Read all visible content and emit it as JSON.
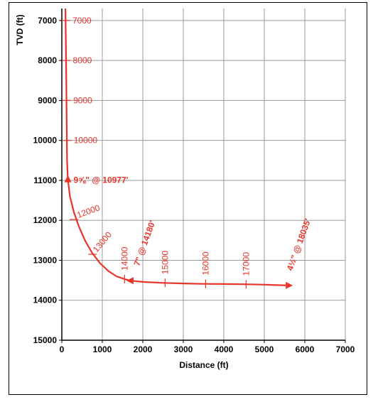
{
  "chart_data": {
    "type": "line",
    "xlabel": "Distance (ft)",
    "ylabel": "TVD (ft)",
    "xlim": [
      0,
      7000
    ],
    "ylim": [
      6700,
      15000
    ],
    "y_inverted": true,
    "grid": true,
    "x_ticks": [
      0,
      1000,
      2000,
      3000,
      4000,
      5000,
      6000,
      7000
    ],
    "y_ticks": [
      7000,
      8000,
      9000,
      10000,
      11000,
      12000,
      13000,
      14000,
      15000
    ],
    "series": [
      {
        "color": "#e8342a",
        "points": [
          {
            "x": 90,
            "y": 6700
          },
          {
            "x": 100,
            "y": 7500
          },
          {
            "x": 110,
            "y": 8500
          },
          {
            "x": 120,
            "y": 9500
          },
          {
            "x": 130,
            "y": 10500
          },
          {
            "x": 150,
            "y": 10977
          },
          {
            "x": 200,
            "y": 11400
          },
          {
            "x": 300,
            "y": 11800
          },
          {
            "x": 420,
            "y": 12150
          },
          {
            "x": 570,
            "y": 12500
          },
          {
            "x": 750,
            "y": 12820
          },
          {
            "x": 950,
            "y": 13080
          },
          {
            "x": 1150,
            "y": 13270
          },
          {
            "x": 1350,
            "y": 13400
          },
          {
            "x": 1550,
            "y": 13470
          },
          {
            "x": 1700,
            "y": 13510
          },
          {
            "x": 2000,
            "y": 13540
          },
          {
            "x": 2500,
            "y": 13565
          },
          {
            "x": 3000,
            "y": 13580
          },
          {
            "x": 3500,
            "y": 13590
          },
          {
            "x": 4000,
            "y": 13595
          },
          {
            "x": 4500,
            "y": 13600
          },
          {
            "x": 5000,
            "y": 13610
          },
          {
            "x": 5600,
            "y": 13630
          }
        ]
      }
    ],
    "md_marks": [
      {
        "label": "7000",
        "x": 105,
        "y": 7000,
        "rotated": false
      },
      {
        "label": "8000",
        "x": 115,
        "y": 8000,
        "rotated": false
      },
      {
        "label": "9000",
        "x": 125,
        "y": 9000,
        "rotated": false
      },
      {
        "label": "10000",
        "x": 135,
        "y": 10000,
        "rotated": false
      },
      {
        "label": "12000",
        "x": 300,
        "y": 11980,
        "rotated": false
      },
      {
        "label": "13000",
        "x": 760,
        "y": 12850,
        "rotated": false
      },
      {
        "label": "14000",
        "x": 1550,
        "y": 13470,
        "rotated": true
      },
      {
        "label": "15000",
        "x": 2550,
        "y": 13565,
        "rotated": true
      },
      {
        "label": "16000",
        "x": 3550,
        "y": 13590,
        "rotated": true
      },
      {
        "label": "17000",
        "x": 4550,
        "y": 13602,
        "rotated": true
      }
    ],
    "casing_points": [
      {
        "label": "9⅝\" @ 10977'",
        "x": 150,
        "y": 10977,
        "arrow": "up",
        "rotated": false
      },
      {
        "label": "7\" @ 14180'",
        "x": 1700,
        "y": 13510,
        "arrow": "left",
        "rotated": true
      },
      {
        "label": "4½\" @ 18035'",
        "x": 5600,
        "y": 13630,
        "arrow": "right",
        "rotated": true
      }
    ]
  }
}
